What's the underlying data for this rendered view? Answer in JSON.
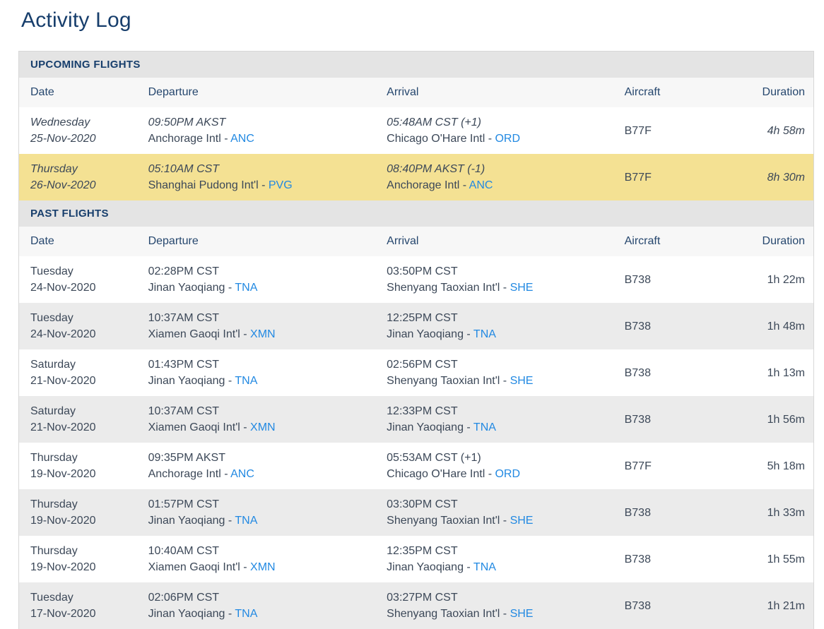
{
  "page": {
    "title": "Activity Log"
  },
  "labels": {
    "airport_separator": " - "
  },
  "columns": [
    "Date",
    "Departure",
    "Arrival",
    "Aircraft",
    "Duration"
  ],
  "colors": {
    "title_navy": "#173E6C",
    "header_text": "#26476E",
    "body_text": "#3C4858",
    "link_blue": "#2289E2",
    "section_bar_bg": "#E4E4E4",
    "header_row_bg": "#F7F7F7",
    "stripe_bg": "#EBEBEB",
    "highlight_bg": "#F4E193",
    "table_border": "#D7D7D7"
  },
  "sections": [
    {
      "id": "upcoming",
      "title": "UPCOMING FLIGHTS",
      "italic": true,
      "rows": [
        {
          "day": "Wednesday",
          "date": "25-Nov-2020",
          "depTime": "09:50PM AKST",
          "depAirport": "Anchorage Intl",
          "depCode": "ANC",
          "arrTime": "05:48AM CST (+1)",
          "arrAirport": "Chicago O'Hare Intl",
          "arrCode": "ORD",
          "aircraft": "B77F",
          "duration": "4h 58m",
          "highlight": false
        },
        {
          "day": "Thursday",
          "date": "26-Nov-2020",
          "depTime": "05:10AM CST",
          "depAirport": "Shanghai Pudong Int'l",
          "depCode": "PVG",
          "arrTime": "08:40PM AKST (-1)",
          "arrAirport": "Anchorage Intl",
          "arrCode": "ANC",
          "aircraft": "B77F",
          "duration": "8h 30m",
          "highlight": true
        }
      ]
    },
    {
      "id": "past",
      "title": "PAST FLIGHTS",
      "italic": false,
      "rows": [
        {
          "day": "Tuesday",
          "date": "24-Nov-2020",
          "depTime": "02:28PM CST",
          "depAirport": "Jinan Yaoqiang",
          "depCode": "TNA",
          "arrTime": "03:50PM CST",
          "arrAirport": "Shenyang Taoxian Int'l",
          "arrCode": "SHE",
          "aircraft": "B738",
          "duration": "1h 22m",
          "highlight": false
        },
        {
          "day": "Tuesday",
          "date": "24-Nov-2020",
          "depTime": "10:37AM CST",
          "depAirport": "Xiamen Gaoqi Int'l",
          "depCode": "XMN",
          "arrTime": "12:25PM CST",
          "arrAirport": "Jinan Yaoqiang",
          "arrCode": "TNA",
          "aircraft": "B738",
          "duration": "1h 48m",
          "highlight": false
        },
        {
          "day": "Saturday",
          "date": "21-Nov-2020",
          "depTime": "01:43PM CST",
          "depAirport": "Jinan Yaoqiang",
          "depCode": "TNA",
          "arrTime": "02:56PM CST",
          "arrAirport": "Shenyang Taoxian Int'l",
          "arrCode": "SHE",
          "aircraft": "B738",
          "duration": "1h 13m",
          "highlight": false
        },
        {
          "day": "Saturday",
          "date": "21-Nov-2020",
          "depTime": "10:37AM CST",
          "depAirport": "Xiamen Gaoqi Int'l",
          "depCode": "XMN",
          "arrTime": "12:33PM CST",
          "arrAirport": "Jinan Yaoqiang",
          "arrCode": "TNA",
          "aircraft": "B738",
          "duration": "1h 56m",
          "highlight": false
        },
        {
          "day": "Thursday",
          "date": "19-Nov-2020",
          "depTime": "09:35PM AKST",
          "depAirport": "Anchorage Intl",
          "depCode": "ANC",
          "arrTime": "05:53AM CST (+1)",
          "arrAirport": "Chicago O'Hare Intl",
          "arrCode": "ORD",
          "aircraft": "B77F",
          "duration": "5h 18m",
          "highlight": false
        },
        {
          "day": "Thursday",
          "date": "19-Nov-2020",
          "depTime": "01:57PM CST",
          "depAirport": "Jinan Yaoqiang",
          "depCode": "TNA",
          "arrTime": "03:30PM CST",
          "arrAirport": "Shenyang Taoxian Int'l",
          "arrCode": "SHE",
          "aircraft": "B738",
          "duration": "1h 33m",
          "highlight": false
        },
        {
          "day": "Thursday",
          "date": "19-Nov-2020",
          "depTime": "10:40AM CST",
          "depAirport": "Xiamen Gaoqi Int'l",
          "depCode": "XMN",
          "arrTime": "12:35PM CST",
          "arrAirport": "Jinan Yaoqiang",
          "arrCode": "TNA",
          "aircraft": "B738",
          "duration": "1h 55m",
          "highlight": false
        },
        {
          "day": "Tuesday",
          "date": "17-Nov-2020",
          "depTime": "02:06PM CST",
          "depAirport": "Jinan Yaoqiang",
          "depCode": "TNA",
          "arrTime": "03:27PM CST",
          "arrAirport": "Shenyang Taoxian Int'l",
          "arrCode": "SHE",
          "aircraft": "B738",
          "duration": "1h 21m",
          "highlight": false
        }
      ]
    }
  ]
}
